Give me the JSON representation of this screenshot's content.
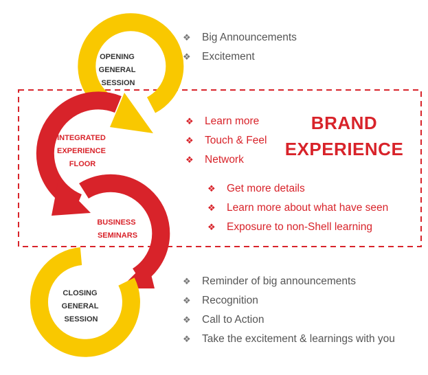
{
  "colors": {
    "yellow": "#f9c800",
    "red": "#d8232a",
    "gray_text": "#555555",
    "dash_border": "#d8232a"
  },
  "steps": [
    {
      "id": "opening",
      "lines": [
        "OPENING",
        "GENERAL",
        "SESSION"
      ],
      "color": "yellow"
    },
    {
      "id": "integrated",
      "lines": [
        "INTEGRATED",
        "EXPERIENCE",
        "FLOOR"
      ],
      "color": "red"
    },
    {
      "id": "seminars",
      "lines": [
        "BUSINESS",
        "SEMINARS"
      ],
      "color": "red"
    },
    {
      "id": "closing",
      "lines": [
        "CLOSING",
        "GENERAL",
        "SESSION"
      ],
      "color": "yellow"
    }
  ],
  "opening_bullets": [
    "Big Announcements",
    "Excitement"
  ],
  "integrated_bullets": [
    "Learn more",
    "Touch & Feel",
    "Network"
  ],
  "seminar_bullets": [
    "Get more details",
    "Learn more about what have seen",
    "Exposure to non-Shell learning"
  ],
  "closing_bullets": [
    "Reminder of big announcements",
    "Recognition",
    "Call to Action",
    "Take the excitement & learnings with you"
  ],
  "brand_experience": [
    "BRAND",
    "EXPERIENCE"
  ],
  "bullet_glyph": "❖"
}
